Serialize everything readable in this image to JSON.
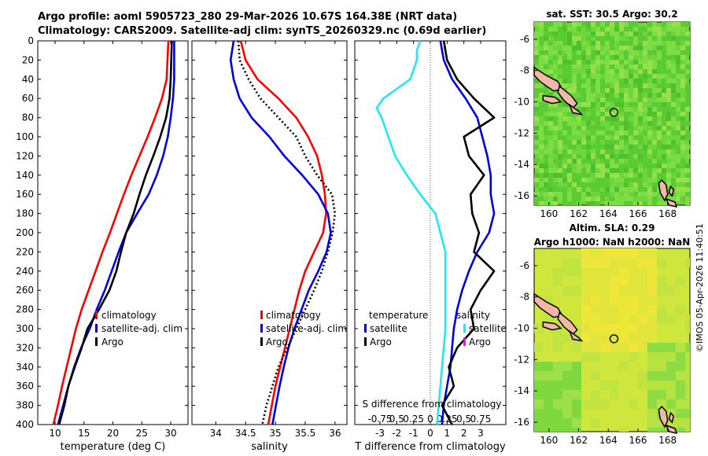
{
  "header": {
    "line1": "Argo profile: aoml 5905723_280 29-Mar-2026 10.67S 164.38E (NRT data)",
    "line2": "Climatology: CARS2009. Satellite-adj clim: synTS_20260329.nc (0.69d earlier)"
  },
  "right_panels": {
    "sst_title": "sat. SST: 30.5 Argo: 30.2",
    "sla_title1": "Altim. SLA: 0.29",
    "sla_title2": "Argo h1000: NaN h2000: NaN",
    "watermark": "©IMOS 05-Apr-2026 11:40:51",
    "lon_ticks": [
      "160",
      "162",
      "164",
      "166",
      "168"
    ],
    "lat_ticks": [
      "-6",
      "-8",
      "-10",
      "-12",
      "-14",
      "-16"
    ],
    "colors": {
      "ocean_main": "#6cd63c",
      "land": "#f2b8a6",
      "sla_field": "#cfe63c"
    }
  },
  "chart_data": [
    {
      "type": "line",
      "panel": "temperature",
      "xlabel": "temperature (deg C)",
      "ylabel": "",
      "xlim": [
        7,
        33
      ],
      "ylim": [
        0,
        400
      ],
      "y_inverted": true,
      "xticks": [
        10,
        15,
        20,
        25,
        30
      ],
      "yticks": [
        0,
        20,
        40,
        60,
        80,
        100,
        120,
        140,
        160,
        180,
        200,
        220,
        240,
        260,
        280,
        300,
        320,
        340,
        360,
        380,
        400
      ],
      "legend": {
        "position": "lower-right",
        "entries": [
          "climatology",
          "satellite-adj. clim",
          "Argo"
        ]
      },
      "series": [
        {
          "name": "climatology",
          "color": "#ff0000",
          "style": "solid",
          "depth": [
            0,
            40,
            60,
            80,
            100,
            120,
            140,
            160,
            180,
            200,
            220,
            240,
            260,
            280,
            300,
            320,
            340,
            360,
            380,
            400
          ],
          "value": [
            29.6,
            29.3,
            28.5,
            27.3,
            26.0,
            24.6,
            23.2,
            21.9,
            20.7,
            19.5,
            18.2,
            17.0,
            15.8,
            14.6,
            13.6,
            12.8,
            12.0,
            11.2,
            10.5,
            9.7
          ]
        },
        {
          "name": "satellite-adj. clim",
          "color": "#0000dd",
          "style": "solid",
          "depth": [
            0,
            40,
            60,
            80,
            100,
            120,
            140,
            160,
            180,
            200,
            220,
            240,
            260,
            280,
            300,
            320,
            340,
            360,
            380,
            400
          ],
          "value": [
            30.6,
            30.6,
            30.4,
            30.0,
            29.5,
            28.7,
            27.6,
            26.2,
            24.2,
            22.3,
            21.0,
            19.8,
            18.6,
            17.2,
            16.0,
            14.5,
            13.3,
            12.3,
            11.4,
            10.5
          ]
        },
        {
          "name": "Argo",
          "color": "#000000",
          "style": "solid",
          "depth": [
            0,
            40,
            60,
            80,
            100,
            120,
            140,
            160,
            180,
            200,
            220,
            240,
            260,
            280,
            300,
            320,
            340,
            360,
            380,
            400
          ],
          "value": [
            30.2,
            30.0,
            29.8,
            29.2,
            28.2,
            27.0,
            25.7,
            24.6,
            23.6,
            22.3,
            21.4,
            20.6,
            19.4,
            17.6,
            15.6,
            14.6,
            13.4,
            12.3,
            11.6,
            10.7
          ]
        }
      ]
    },
    {
      "type": "line",
      "panel": "salinity",
      "xlabel": "salinity",
      "ylabel": "",
      "xlim": [
        33.6,
        36.2
      ],
      "ylim": [
        0,
        400
      ],
      "y_inverted": true,
      "xticks": [
        34,
        34.5,
        35,
        35.5,
        36
      ],
      "xticklabels": [
        "34",
        "34.5",
        "35",
        "35.5",
        "36"
      ],
      "legend": {
        "position": "lower-right",
        "entries": [
          "climatology",
          "satellite-adj. clim",
          "Argo"
        ]
      },
      "series": [
        {
          "name": "climatology",
          "color": "#ff0000",
          "style": "solid",
          "depth": [
            0,
            20,
            40,
            60,
            80,
            100,
            120,
            140,
            160,
            180,
            200,
            220,
            240,
            260,
            280,
            300,
            320,
            340,
            360,
            380,
            400
          ],
          "value": [
            34.42,
            34.5,
            34.7,
            35.05,
            35.35,
            35.55,
            35.7,
            35.78,
            35.83,
            35.85,
            35.8,
            35.65,
            35.5,
            35.4,
            35.32,
            35.24,
            35.16,
            35.08,
            35.0,
            34.94,
            34.88
          ]
        },
        {
          "name": "satellite-adj. clim",
          "color": "#0000dd",
          "style": "solid",
          "depth": [
            0,
            20,
            40,
            60,
            80,
            100,
            120,
            140,
            160,
            180,
            200,
            220,
            240,
            260,
            280,
            300,
            320,
            340,
            360,
            380,
            400
          ],
          "value": [
            34.3,
            34.25,
            34.3,
            34.4,
            34.6,
            34.9,
            35.15,
            35.45,
            35.72,
            35.88,
            35.93,
            35.86,
            35.72,
            35.56,
            35.44,
            35.32,
            35.22,
            35.14,
            35.07,
            35.01,
            34.95
          ]
        },
        {
          "name": "Argo",
          "color": "#000000",
          "style": "dotted",
          "depth": [
            0,
            20,
            40,
            60,
            80,
            100,
            120,
            140,
            160,
            180,
            200,
            220,
            240,
            260,
            280,
            300,
            320,
            340,
            360,
            380,
            400
          ],
          "value": [
            34.38,
            34.4,
            34.55,
            34.75,
            35.05,
            35.35,
            35.5,
            35.7,
            35.95,
            36.0,
            35.96,
            35.88,
            35.78,
            35.65,
            35.5,
            35.35,
            35.2,
            35.05,
            34.95,
            34.85,
            34.78
          ]
        }
      ]
    },
    {
      "type": "line",
      "panel": "difference",
      "xlabel": "T difference from climatology",
      "top_axis_label": "S difference from climatology",
      "xlim": [
        -4.5,
        4.5
      ],
      "ylim": [
        0,
        400
      ],
      "y_inverted": true,
      "xticks": [
        -3,
        -2,
        -1,
        0,
        1,
        2,
        3
      ],
      "top_ticklabels": [
        "-0.75",
        "0.5",
        "0.25",
        "0",
        "0.25",
        "0.5",
        "0.75"
      ],
      "legend": {
        "position": "lower-center",
        "temperature_title": "temperature",
        "salinity_title": "salinity",
        "temperature_entries": [
          "satellite",
          "Argo"
        ],
        "salinity_entries": [
          "satellite",
          "Argo"
        ]
      },
      "series": [
        {
          "name": "temperature satellite",
          "color": "#22e8ee",
          "style": "solid",
          "depth": [
            0,
            10,
            20,
            40,
            60,
            70,
            80,
            100,
            120,
            140,
            160,
            180,
            200,
            220,
            240,
            260,
            280,
            300,
            320,
            340,
            360,
            380,
            400
          ],
          "value": [
            -0.6,
            -0.8,
            -0.8,
            -1.2,
            -2.8,
            -3.2,
            -2.9,
            -2.5,
            -2.1,
            -1.4,
            -0.6,
            0.3,
            0.6,
            0.9,
            0.9,
            0.9,
            0.9,
            0.9,
            0.8,
            0.7,
            0.6,
            0.5,
            0.4
          ]
        },
        {
          "name": "salinity satellite",
          "color": "#0000dd",
          "style": "solid",
          "depth": [
            0,
            20,
            40,
            60,
            80,
            100,
            120,
            140,
            160,
            180,
            200,
            220,
            240,
            260,
            280,
            300,
            320,
            340,
            360,
            380,
            400
          ],
          "value": [
            0.6,
            0.8,
            1.3,
            2.1,
            2.8,
            3.1,
            3.4,
            3.6,
            3.6,
            3.8,
            3.5,
            2.8,
            2.3,
            1.9,
            1.6,
            1.4,
            1.3,
            1.2,
            1.0,
            0.8,
            0.7
          ]
        },
        {
          "name": "salinity Argo",
          "color": "#000000",
          "style": "solid",
          "depth": [
            0,
            20,
            40,
            60,
            80,
            100,
            120,
            140,
            160,
            180,
            200,
            220,
            240,
            260,
            280,
            300,
            320,
            340,
            360,
            380,
            400
          ],
          "value": [
            0.8,
            1.0,
            1.6,
            2.6,
            3.8,
            2.0,
            2.3,
            3.2,
            2.4,
            2.5,
            2.9,
            2.6,
            3.8,
            3.0,
            2.4,
            2.6,
            1.6,
            1.1,
            1.4,
            0.7,
            1.3
          ]
        }
      ]
    }
  ]
}
